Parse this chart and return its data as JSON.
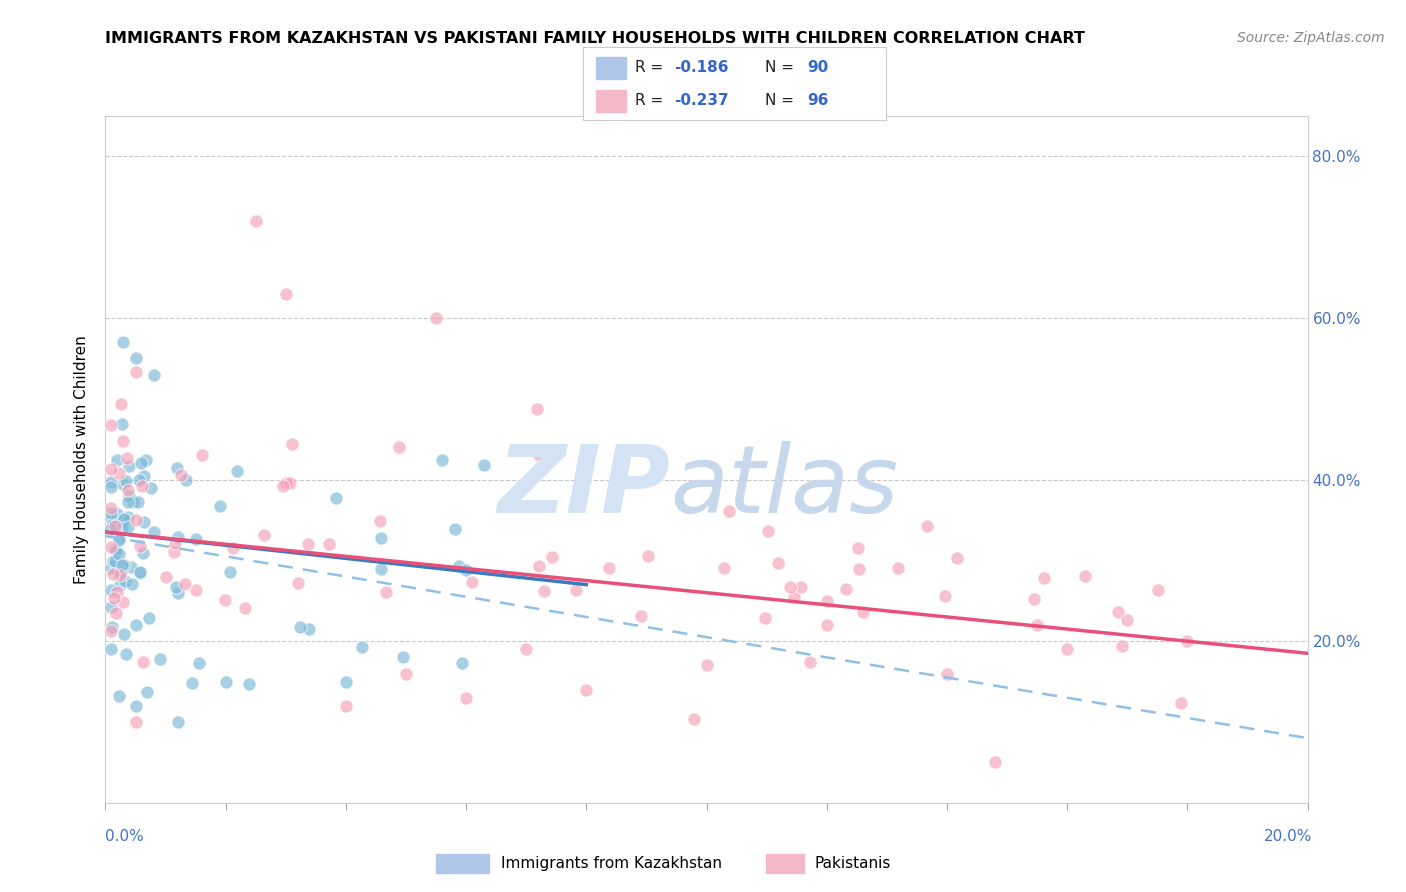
{
  "title": "IMMIGRANTS FROM KAZAKHSTAN VS PAKISTANI FAMILY HOUSEHOLDS WITH CHILDREN CORRELATION CHART",
  "source": "Source: ZipAtlas.com",
  "ylabel": "Family Households with Children",
  "blue_line_x": [
    0.0,
    0.08
  ],
  "blue_line_y": [
    0.335,
    0.27
  ],
  "pink_line_x": [
    0.0,
    0.2
  ],
  "pink_line_y": [
    0.335,
    0.185
  ],
  "dashed_line_x": [
    0.0,
    0.2
  ],
  "dashed_line_y": [
    0.33,
    0.08
  ],
  "xlim": [
    0.0,
    0.2
  ],
  "ylim": [
    0.0,
    0.85
  ],
  "right_yticklabels": [
    "20.0%",
    "40.0%",
    "60.0%",
    "80.0%"
  ],
  "right_ytick_vals": [
    0.2,
    0.4,
    0.6,
    0.8
  ],
  "blue_color": "#7ab8d8",
  "pink_color": "#f4a0b8",
  "blue_line_color": "#3a7abf",
  "pink_line_color": "#e8507a",
  "dashed_line_color": "#90c0e8",
  "background_color": "#ffffff",
  "grid_color": "#c8c8c8",
  "watermark_zip_color": "#d4e4f4",
  "watermark_atlas_color": "#c8d8ec"
}
